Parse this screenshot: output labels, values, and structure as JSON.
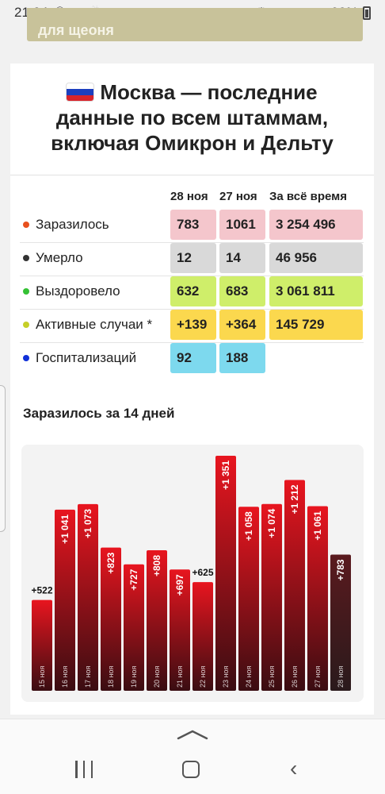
{
  "status_bar": {
    "time": "21:04",
    "battery": "92%"
  },
  "banner": {
    "text": "для щеоня"
  },
  "card": {
    "title_line1": "Москва — последние",
    "title_line2": "данные по всем штаммам,",
    "title_line3": "включая Омикрон и Дельту",
    "columns": [
      "28 ноя",
      "27 ноя",
      "За всё время"
    ],
    "rows": [
      {
        "label": "Заразилось",
        "dot": "#e8501e",
        "bg": "#f4c6cc",
        "values": [
          "783",
          "1061",
          "3 254 496"
        ]
      },
      {
        "label": "Умерло",
        "dot": "#333333",
        "bg": "#d9d9d9",
        "values": [
          "12",
          "14",
          "46 956"
        ]
      },
      {
        "label": "Выздоровело",
        "dot": "#34c134",
        "bg": "#cfee6a",
        "values": [
          "632",
          "683",
          "3 061 811"
        ]
      },
      {
        "label": "Активные случаи *",
        "dot": "#c6cf28",
        "bg": "#fbd84e",
        "values": [
          "+139",
          "+364",
          "145 729"
        ]
      },
      {
        "label": "Госпитализаций",
        "dot": "#1030d8",
        "bg": "#7dd9ee",
        "values": [
          "92",
          "188",
          ""
        ]
      }
    ],
    "chart_title": "Заразилось за 14 дней"
  },
  "chart_data": {
    "type": "bar",
    "title": "Заразилось за 14 дней",
    "categories": [
      "15 ноя",
      "16 ноя",
      "17 ноя",
      "18 ноя",
      "19 ноя",
      "20 ноя",
      "21 ноя",
      "22 ноя",
      "23 ноя",
      "24 ноя",
      "25 ноя",
      "26 ноя",
      "27 ноя",
      "28 ноя"
    ],
    "values": [
      522,
      1041,
      1073,
      823,
      727,
      808,
      697,
      625,
      1351,
      1058,
      1074,
      1212,
      1061,
      783
    ],
    "value_labels": [
      "+522",
      "+1 041",
      "+1 073",
      "+823",
      "+727",
      "+808",
      "+697",
      "+625",
      "+1 351",
      "+1 058",
      "+1 074",
      "+1 212",
      "+1 061",
      "+783"
    ],
    "ylim": [
      0,
      1351
    ],
    "colors": {
      "bar_top": "#e8151f",
      "bar_bottom": "#3a0d12",
      "last_bar_top": "#5a1a1e",
      "last_bar_bottom": "#2a1a1c"
    }
  },
  "nav": {
    "icons": [
      "recent-apps-icon",
      "home-icon",
      "back-icon",
      "chevron-up-icon"
    ]
  }
}
